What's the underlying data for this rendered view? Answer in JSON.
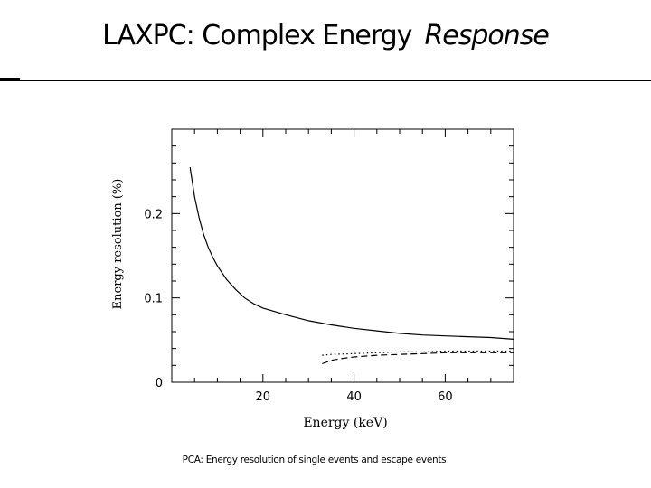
{
  "slide": {
    "title_main": "LAXPC: Complex Energy",
    "title_italic": "Response",
    "caption": "PCA: Energy resolution of single events and escape events"
  },
  "chart_data": {
    "type": "line",
    "title": "",
    "xlabel": "Energy (keV)",
    "ylabel": "Energy resolution (%)",
    "xlim": [
      0,
      75
    ],
    "ylim": [
      0,
      0.3
    ],
    "xticks": [
      20,
      40,
      60
    ],
    "xtick_labels": [
      "20",
      "40",
      "60"
    ],
    "yticks": [
      0,
      0.1,
      0.2
    ],
    "ytick_labels": [
      "0",
      "0.1",
      "0.2"
    ],
    "grid": false,
    "series": [
      {
        "style": "solid",
        "x": [
          4,
          5,
          6,
          7,
          8,
          9,
          10,
          12,
          14,
          16,
          18,
          20,
          25,
          30,
          35,
          40,
          45,
          50,
          55,
          60,
          65,
          70,
          75
        ],
        "y": [
          0.255,
          0.22,
          0.195,
          0.175,
          0.16,
          0.148,
          0.138,
          0.122,
          0.11,
          0.1,
          0.093,
          0.088,
          0.08,
          0.073,
          0.068,
          0.064,
          0.061,
          0.058,
          0.056,
          0.055,
          0.054,
          0.053,
          0.051
        ]
      },
      {
        "style": "dotted",
        "x": [
          33,
          35,
          40,
          45,
          50,
          55,
          60,
          65,
          70,
          75
        ],
        "y": [
          0.032,
          0.033,
          0.034,
          0.035,
          0.036,
          0.036,
          0.037,
          0.037,
          0.037,
          0.037
        ]
      },
      {
        "style": "dashed",
        "x": [
          33,
          35,
          37,
          40,
          45,
          50,
          55,
          60,
          65,
          70,
          75
        ],
        "y": [
          0.022,
          0.026,
          0.028,
          0.03,
          0.032,
          0.033,
          0.034,
          0.035,
          0.035,
          0.035,
          0.035
        ]
      }
    ]
  }
}
